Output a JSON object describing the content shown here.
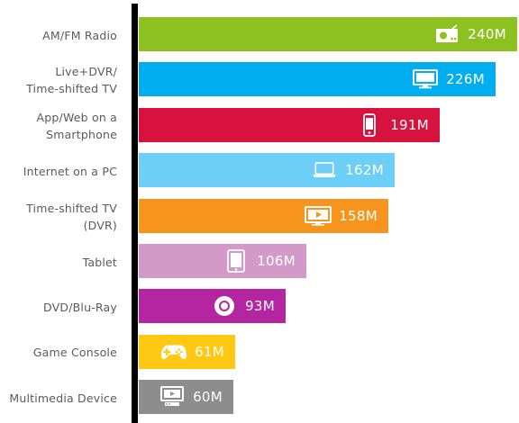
{
  "chart_data": {
    "type": "bar",
    "orientation": "horizontal",
    "categories": [
      "AM/FM Radio",
      "Live+DVR/\nTime-shifted TV",
      "App/Web on a\nSmartphone",
      "Internet on a PC",
      "Time-shifted TV\n(DVR)",
      "Tablet",
      "DVD/Blu-Ray",
      "Game Console",
      "Multimedia Device"
    ],
    "values": [
      240,
      226,
      191,
      162,
      158,
      106,
      93,
      61,
      60
    ],
    "value_labels": [
      "240M",
      "226M",
      "191M",
      "162M",
      "158M",
      "106M",
      "93M",
      "61M",
      "60M"
    ],
    "colors": [
      "#8cc11f",
      "#00adef",
      "#d8123f",
      "#6dcff6",
      "#f7941d",
      "#d39ac9",
      "#b325a1",
      "#ffc813",
      "#8d8d8d"
    ],
    "icons": [
      "radio-icon",
      "tv-icon",
      "smartphone-icon",
      "laptop-icon",
      "video-play-icon",
      "tablet-icon",
      "disc-icon",
      "gamepad-icon",
      "media-player-icon"
    ],
    "xlim": [
      0,
      240
    ],
    "grid": false,
    "legend": "none"
  }
}
